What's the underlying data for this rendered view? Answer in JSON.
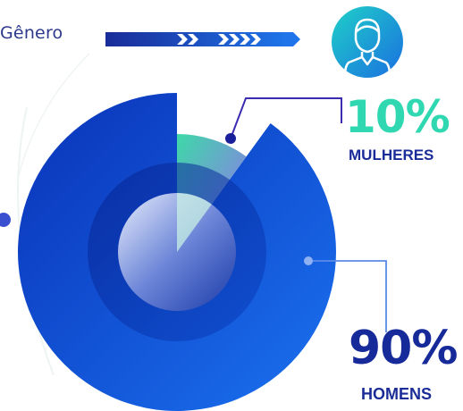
{
  "header": {
    "title": "Gênero",
    "avatar_icon": "user-avatar-icon"
  },
  "colors": {
    "navy": "#1a2c98",
    "blue": "#0a4fd6",
    "teal": "#2fd8b0",
    "purple": "#8b6cf0"
  },
  "chart_data": {
    "type": "pie",
    "categories": [
      "MULHERES",
      "HOMENS"
    ],
    "values": [
      10,
      90
    ],
    "labels": [
      "10%",
      "90%"
    ],
    "title": "Gênero"
  }
}
